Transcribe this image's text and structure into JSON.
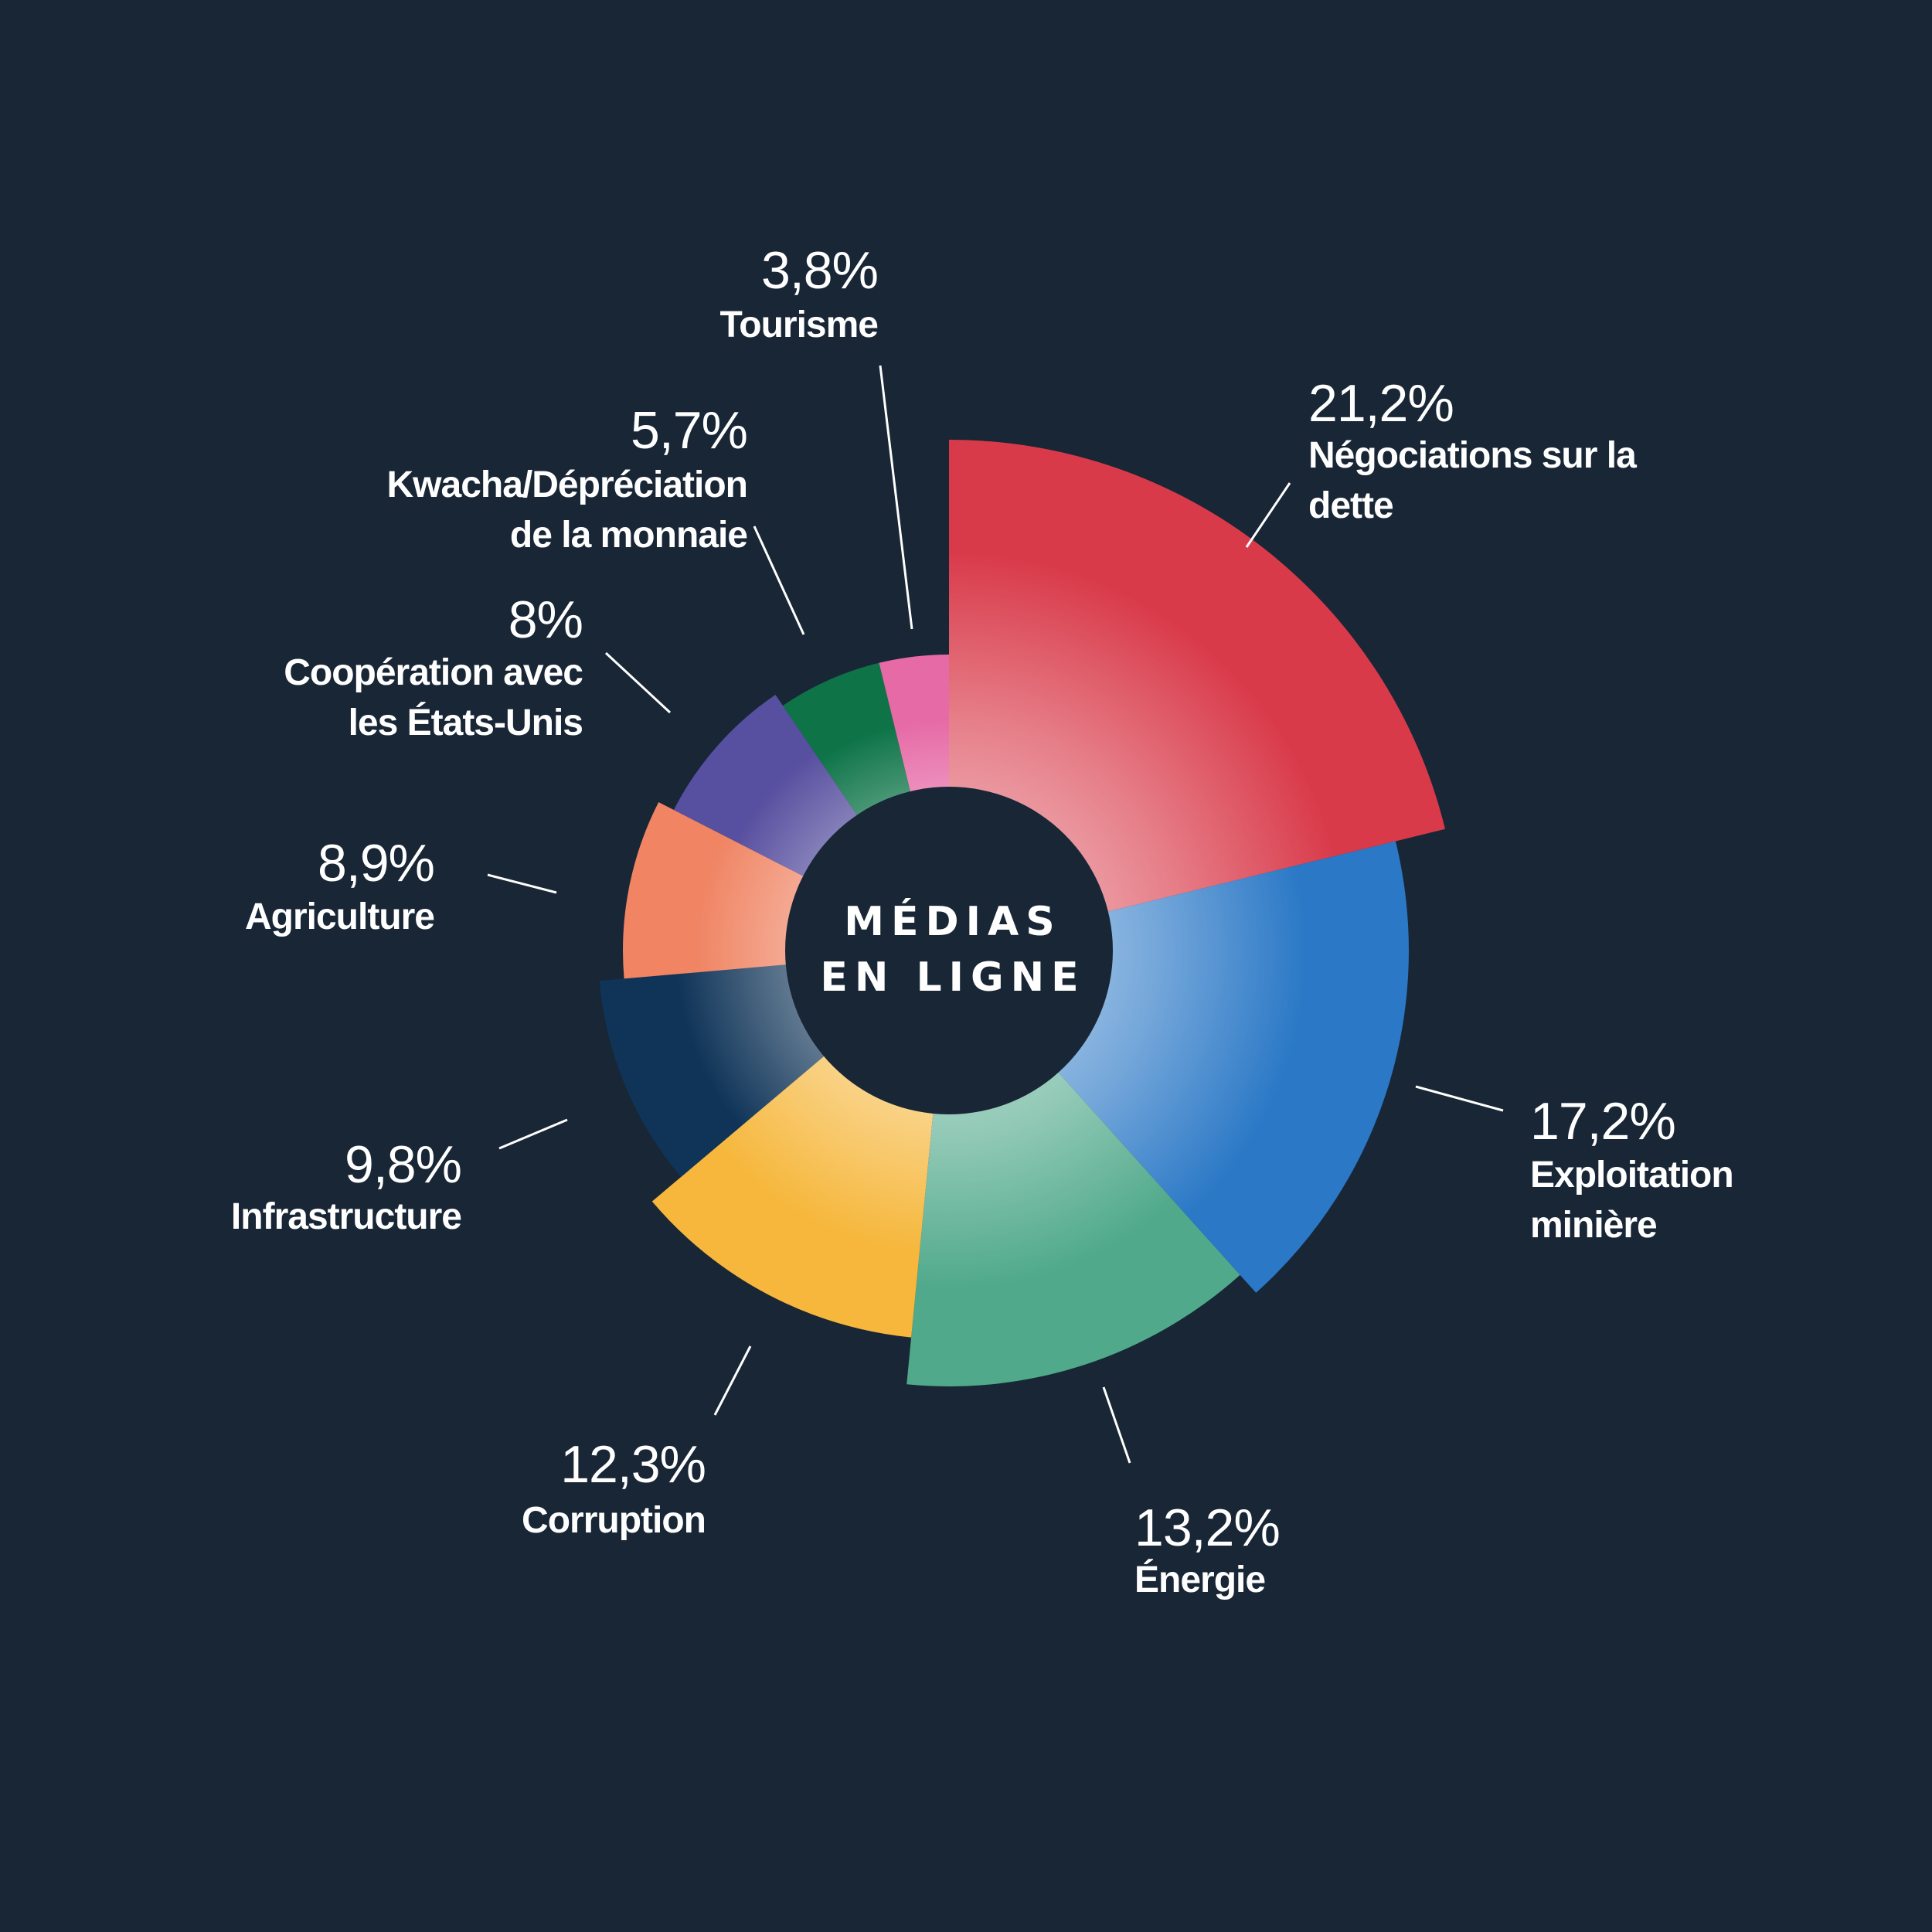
{
  "chart_data": {
    "type": "pie",
    "center_label": [
      "MÉDIAS",
      "EN LIGNE"
    ],
    "slices": [
      {
        "label": [
          "Négociations sur la",
          "dette"
        ],
        "value": 21.2,
        "value_label": "21,2%",
        "color": "#d93a4a"
      },
      {
        "label": [
          "Exploitation",
          "minière"
        ],
        "value": 17.2,
        "value_label": "17,2%",
        "color": "#2a78c6"
      },
      {
        "label": [
          "Énergie"
        ],
        "value": 13.2,
        "value_label": "13,2%",
        "color": "#4fa98a"
      },
      {
        "label": [
          "Corruption"
        ],
        "value": 12.3,
        "value_label": "12,3%",
        "color": "#f6b73c"
      },
      {
        "label": [
          "Infrastructure"
        ],
        "value": 9.8,
        "value_label": "9,8%",
        "color": "#0f3458"
      },
      {
        "label": [
          "Agriculture"
        ],
        "value": 8.9,
        "value_label": "8,9%",
        "color": "#f08463"
      },
      {
        "label": [
          "Coopération avec",
          "les États-Unis"
        ],
        "value": 8.0,
        "value_label": "8%",
        "color": "#574f9f"
      },
      {
        "label": [
          "Kwacha/Dépréciation",
          "de la monnaie"
        ],
        "value": 5.7,
        "value_label": "5,7%",
        "color": "#0e7448"
      },
      {
        "label": [
          "Tourisme"
        ],
        "value": 3.8,
        "value_label": "3,8%",
        "color": "#e66aa6"
      }
    ]
  }
}
